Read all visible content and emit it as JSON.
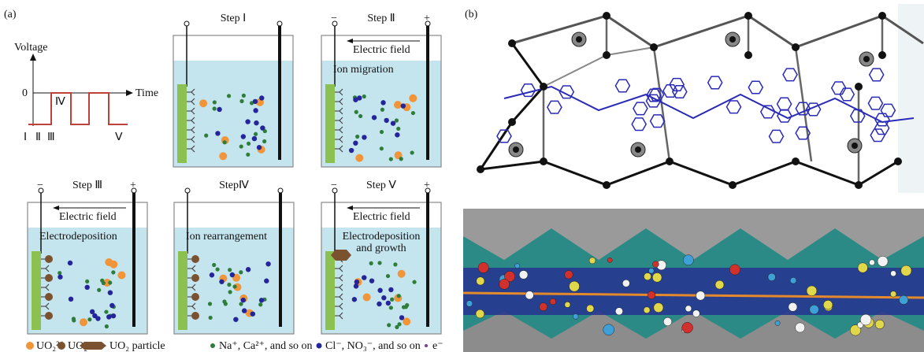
{
  "panel_a": {
    "label": "(a)",
    "waveform": {
      "y_label": "Voltage",
      "x_label": "Time",
      "zero": "0",
      "phases": [
        "Ⅰ",
        "Ⅱ",
        "Ⅲ",
        "Ⅳ",
        "Ⅴ"
      ]
    },
    "steps": [
      {
        "title": "Step Ⅰ"
      },
      {
        "title": "Step Ⅱ",
        "minus": "−",
        "plus": "+",
        "field": "Electric field",
        "process": "Ion migration"
      },
      {
        "title": "Step Ⅲ",
        "minus": "−",
        "plus": "+",
        "field": "Electric field",
        "process": "Electrodeposition"
      },
      {
        "title": "StepⅣ",
        "process": "Ion rearrangement"
      },
      {
        "title": "Step Ⅴ",
        "minus": "−",
        "plus": "+",
        "field": "Electric field",
        "process": "Electrodeposition and growth"
      }
    ],
    "legend": [
      "UO₂²⁺",
      "UO₂",
      "UO₂ particle",
      "Na⁺, Ca²⁺, and so on",
      "Cl⁻, NO₃⁻, and so on",
      "e⁻"
    ]
  },
  "panel_b": {
    "label": "(b)"
  }
}
